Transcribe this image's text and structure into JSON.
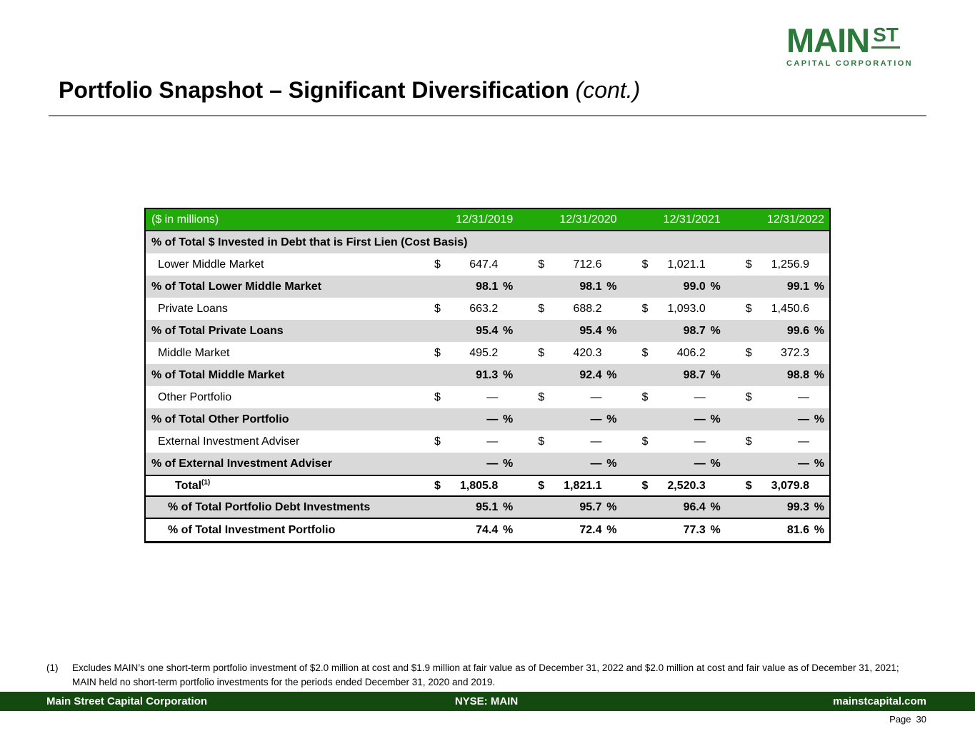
{
  "logo": {
    "main": "MAIN",
    "st": "ST",
    "subtitle": "CAPITAL CORPORATION"
  },
  "header": {
    "title": "Portfolio Snapshot – Significant Diversification",
    "title_suffix": "(cont.)"
  },
  "table": {
    "unit_label": "($ in millions)",
    "currency_symbol": "$",
    "percent_symbol": "%",
    "columns": [
      "12/31/2019",
      "12/31/2020",
      "12/31/2021",
      "12/31/2022"
    ],
    "rows": [
      {
        "type": "section",
        "label": "% of Total $ Invested in Debt that is First Lien (Cost Basis)"
      },
      {
        "type": "amount",
        "label": "Lower Middle Market",
        "values": [
          "647.4",
          "712.6",
          "1,021.1",
          "1,256.9"
        ]
      },
      {
        "type": "percent",
        "label": "% of Total Lower Middle Market",
        "values": [
          "98.1",
          "98.1",
          "99.0",
          "99.1"
        ]
      },
      {
        "type": "amount",
        "label": "Private Loans",
        "values": [
          "663.2",
          "688.2",
          "1,093.0",
          "1,450.6"
        ]
      },
      {
        "type": "percent",
        "label": "% of Total Private Loans",
        "values": [
          "95.4",
          "95.4",
          "98.7",
          "99.6"
        ]
      },
      {
        "type": "amount",
        "label": "Middle Market",
        "values": [
          "495.2",
          "420.3",
          "406.2",
          "372.3"
        ]
      },
      {
        "type": "percent",
        "label": "% of Total Middle Market",
        "values": [
          "91.3",
          "92.4",
          "98.7",
          "98.8"
        ]
      },
      {
        "type": "amount",
        "label": "Other Portfolio",
        "values": [
          "—",
          "—",
          "—",
          "—"
        ]
      },
      {
        "type": "percent",
        "label": "% of Total Other Portfolio",
        "values": [
          "—",
          "—",
          "—",
          "—"
        ]
      },
      {
        "type": "amount",
        "label": "External Investment Adviser",
        "values": [
          "—",
          "—",
          "—",
          "—"
        ]
      },
      {
        "type": "percent",
        "label": "% of External Investment Adviser",
        "values": [
          "—",
          "—",
          "—",
          "—"
        ]
      },
      {
        "type": "total",
        "label": "Total",
        "footnote_ref": "(1)",
        "values": [
          "1,805.8",
          "1,821.1",
          "2,520.3",
          "3,079.8"
        ]
      },
      {
        "type": "summary-gray",
        "label": "% of Total Portfolio Debt Investments",
        "values": [
          "95.1",
          "95.7",
          "96.4",
          "99.3"
        ]
      },
      {
        "type": "summary-white",
        "label": "% of Total Investment Portfolio",
        "values": [
          "74.4",
          "72.4",
          "77.3",
          "81.6"
        ]
      }
    ]
  },
  "footnote": {
    "marker": "(1)",
    "text": "Excludes MAIN’s one short-term portfolio investment of $2.0 million at cost and $1.9 million at fair value as of December 31, 2022 and $2.0 million at cost and fair value as of December 31, 2021; MAIN held no short-term portfolio investments for the periods ended December 31, 2020 and 2019."
  },
  "footer": {
    "company": "Main Street Capital Corporation",
    "ticker": "NYSE: MAIN",
    "website": "mainstcapital.com",
    "page_label": "Page",
    "page_number": "30"
  },
  "colors": {
    "table_header_green": "#22A90A",
    "row_gray": "#D9D9D9",
    "footer_green": "#144A0F",
    "logo_green": "#2B7A3B",
    "title_rule_gray": "#808080"
  }
}
